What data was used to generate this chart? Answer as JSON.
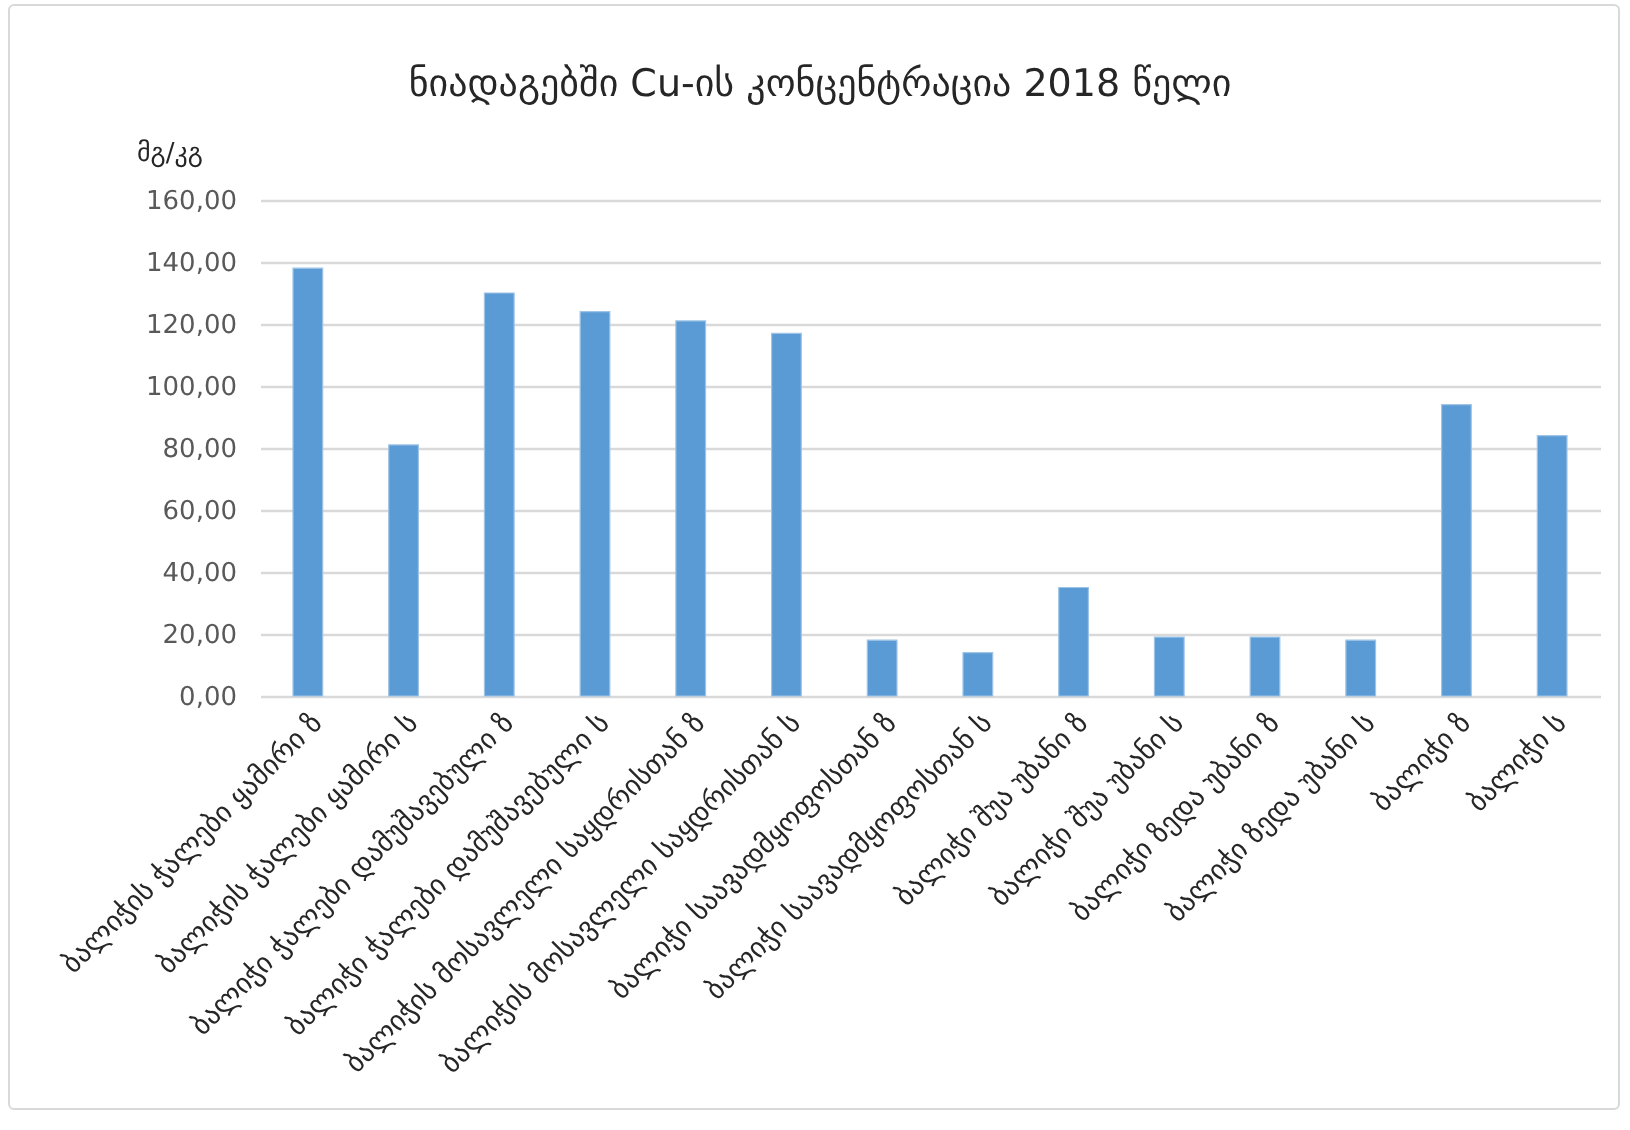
{
  "chart_data": {
    "type": "bar",
    "title": "ნიადაგებში Cu-ის კონცენტრაცია 2018 წელი",
    "ylabel": "მგ/კგ",
    "categories": [
      "ბალიჭის ჭალები ყამირი ზ",
      "ბალიჭის ჭალები ყამირი ს",
      "ბალიჭი ჭალები დამუშავებული ზ",
      "ბალიჭი ჭალები დამუშავებული ს",
      "ბალიჭის მოსავლელი საყდრისთან ზ",
      "ბალიჭის მოსავლელი საყდრისთან ს",
      "ბალიჭი საავადმყოფოსთან ზ",
      "ბალიჭი საავადმყოფოსთან ს",
      "ბალიჭი შუა უბანი ზ",
      "ბალიჭი შუა უბანი ს",
      "ბალიჭი ზედა უბანი ზ",
      "ბალიჭი ზედა უბანი ს",
      "ბალიჭი ზ",
      "ბალიჭი ს"
    ],
    "values": [
      138,
      81,
      130,
      124,
      121,
      117,
      18,
      14,
      35,
      19,
      19,
      18,
      94,
      84
    ],
    "color": "#5b9bd5",
    "ylim": [
      0,
      160
    ],
    "yticks": [
      {
        "value": 0,
        "label": "0,00"
      },
      {
        "value": 20,
        "label": "20,00"
      },
      {
        "value": 40,
        "label": "40,00"
      },
      {
        "value": 60,
        "label": "60,00"
      },
      {
        "value": 80,
        "label": "80,00"
      },
      {
        "value": 100,
        "label": "100,00"
      },
      {
        "value": 120,
        "label": "120,00"
      },
      {
        "value": 140,
        "label": "140,00"
      },
      {
        "value": 160,
        "label": "160,00"
      }
    ],
    "grid": "y"
  }
}
